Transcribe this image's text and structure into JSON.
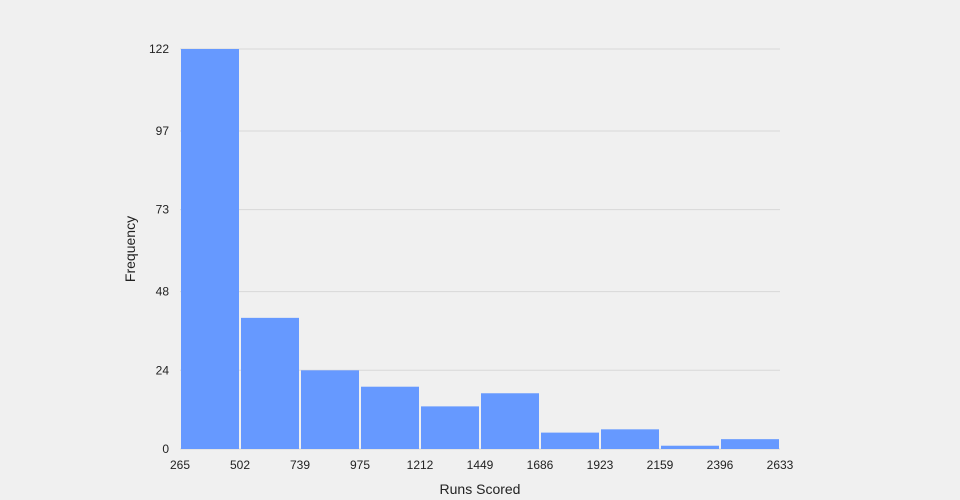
{
  "chart_data": {
    "type": "bar",
    "title": "",
    "xlabel": "Runs Scored",
    "ylabel": "Frequency",
    "bin_edges": [
      265,
      502,
      739,
      975,
      1212,
      1449,
      1686,
      1923,
      2159,
      2396,
      2633
    ],
    "x_tick_labels": [
      "265",
      "502",
      "739",
      "975",
      "1212",
      "1449",
      "1686",
      "1923",
      "2159",
      "2396",
      "2633"
    ],
    "values": [
      122,
      40,
      24,
      19,
      13,
      17,
      5,
      6,
      1,
      3
    ],
    "y_ticks": [
      0,
      24,
      48,
      73,
      97,
      122
    ],
    "y_tick_labels": [
      "0",
      "24",
      "48",
      "73",
      "97",
      "122"
    ],
    "xlim": [
      265,
      2633
    ],
    "ylim": [
      0,
      122
    ],
    "grid": "horizontal",
    "legend": "none"
  },
  "colors": {
    "background": "#f0f0f0",
    "bar": "#6699ff",
    "bar_edge": "#ffffff",
    "grid": "#d8d8d8",
    "text": "#222222"
  }
}
